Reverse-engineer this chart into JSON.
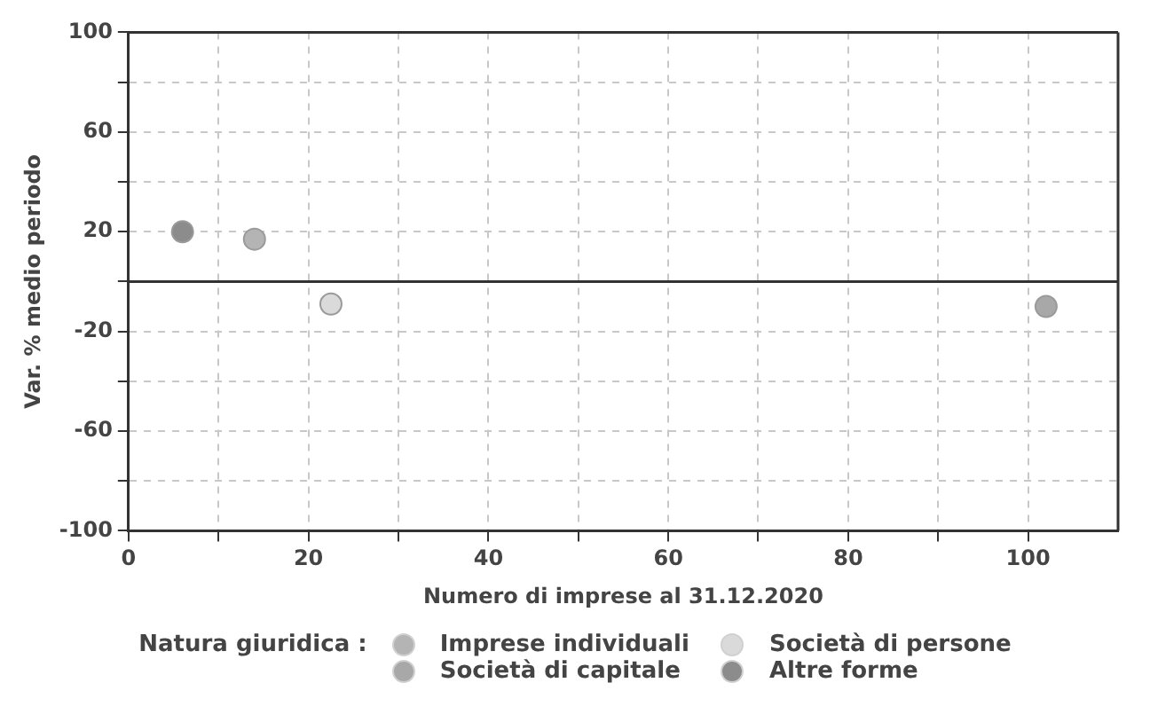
{
  "chart_data": {
    "type": "scatter",
    "xlabel": "Numero di imprese al 31.12.2020",
    "ylabel": "Var. % medio periodo",
    "legend_title": "Natura giuridica :",
    "series": [
      {
        "name": "Imprese individuali",
        "color": "#b4b4b4",
        "x": [
          14
        ],
        "values": [
          17
        ]
      },
      {
        "name": "Società di persone",
        "color": "#dadada",
        "x": [
          22.5
        ],
        "values": [
          -9
        ]
      },
      {
        "name": "Società di capitale",
        "color": "#a8a8a8",
        "x": [
          102
        ],
        "values": [
          -10
        ]
      },
      {
        "name": "Altre forme",
        "color": "#8c8c8c",
        "x": [
          6
        ],
        "values": [
          20
        ]
      }
    ],
    "xlim": [
      0,
      110
    ],
    "ylim": [
      -100,
      100
    ],
    "xticks": [
      0,
      {
        "value": 10,
        "label": null
      },
      20,
      {
        "value": 30,
        "label": null
      },
      40,
      {
        "value": 50,
        "label": null
      },
      60,
      {
        "value": 70,
        "label": null
      },
      80,
      {
        "value": 90,
        "label": null
      },
      100
    ],
    "yticks": [
      -100,
      {
        "value": -80,
        "label": null
      },
      -60,
      {
        "value": -40,
        "label": null
      },
      -20,
      {
        "value": 0,
        "label": null
      },
      20,
      {
        "value": 40,
        "label": null
      },
      60,
      {
        "value": 80,
        "label": null
      },
      100
    ],
    "ref_lines": [
      {
        "axis": "y",
        "value": 0,
        "color": "#333333"
      }
    ],
    "grid": true,
    "legend": "bottom",
    "marker": "circle"
  }
}
